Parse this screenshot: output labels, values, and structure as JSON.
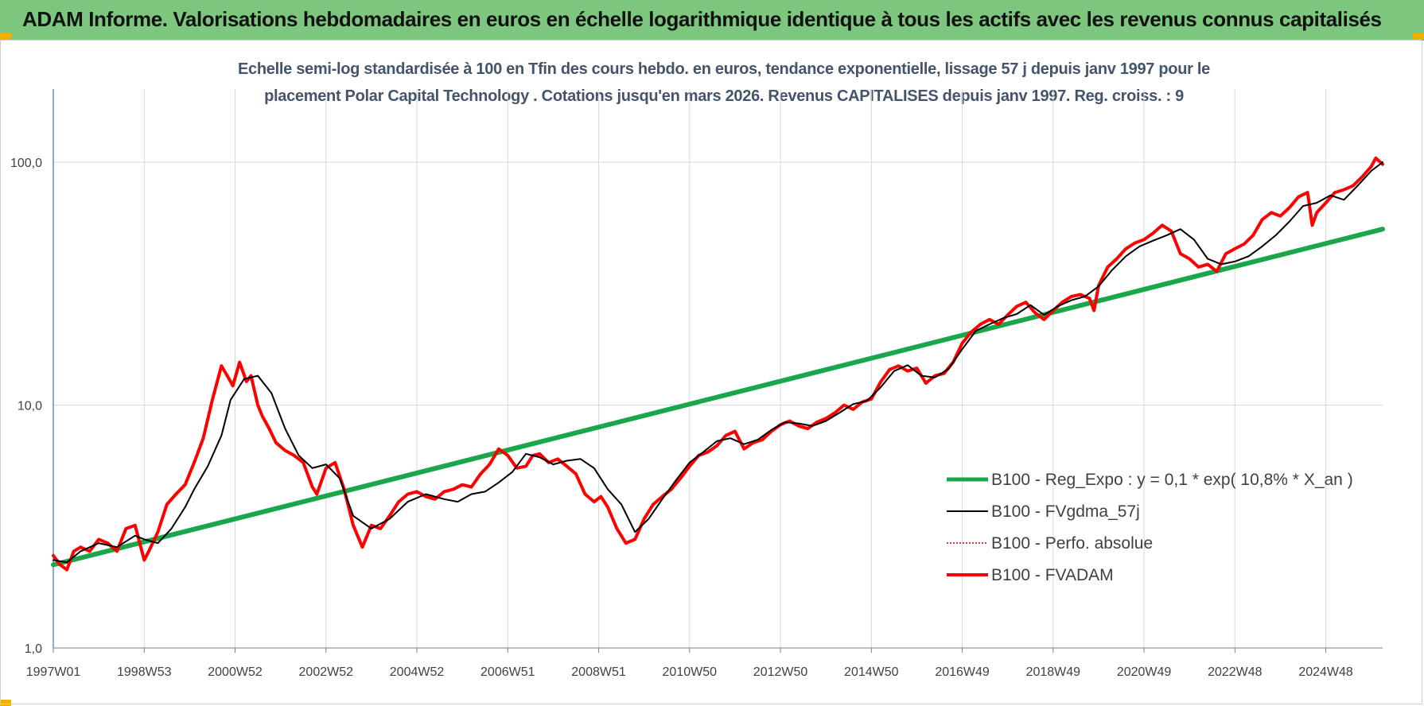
{
  "header": {
    "title": "ADAM Informe. Valorisations hebdomadaires en euros en échelle logarithmique identique à tous les actifs avec les revenus connus capitalisés"
  },
  "colors": {
    "header_bg": "#7dc67d",
    "regression": "#1aa64a",
    "smoothed": "#000000",
    "perfo": "#c00000",
    "fvadam": "#ff0000",
    "title_text": "#44546a"
  },
  "chart_data": {
    "type": "line",
    "title_line1": "Echelle semi-log standardisée à 100 en Tfin des cours hebdo. en euros, tendance exponentielle, lissage 57 j depuis janv 1997 pour le",
    "title_line2": "placement Polar Capital Technology . Cotations jusqu'en mars 2026. Revenus CAPITALISES depuis janv 1997. Reg. croiss. : 9",
    "yscale": "log",
    "ylim": [
      1,
      200
    ],
    "xlim": [
      1997.0,
      2026.25
    ],
    "grid": true,
    "legend_position": "right",
    "y_ticks": [
      {
        "value": 100,
        "label": "100,0"
      },
      {
        "value": 10,
        "label": "10,0"
      },
      {
        "value": 1,
        "label": "1,0"
      }
    ],
    "x_ticks": [
      {
        "value": 1997.0,
        "label": "1997W01"
      },
      {
        "value": 1999.0,
        "label": "1998W53"
      },
      {
        "value": 2001.0,
        "label": "2000W52"
      },
      {
        "value": 2003.0,
        "label": "2002W52"
      },
      {
        "value": 2005.0,
        "label": "2004W52"
      },
      {
        "value": 2007.0,
        "label": "2006W51"
      },
      {
        "value": 2009.0,
        "label": "2008W51"
      },
      {
        "value": 2011.0,
        "label": "2010W50"
      },
      {
        "value": 2013.0,
        "label": "2012W50"
      },
      {
        "value": 2015.0,
        "label": "2014W50"
      },
      {
        "value": 2017.0,
        "label": "2016W49"
      },
      {
        "value": 2019.0,
        "label": "2018W49"
      },
      {
        "value": 2021.0,
        "label": "2020W49"
      },
      {
        "value": 2023.0,
        "label": "2022W48"
      },
      {
        "value": 2025.0,
        "label": "2024W48"
      }
    ],
    "series": [
      {
        "name": "B100 - Reg_Expo : y = 0,1 * exp( 10,8% *  X_an )",
        "style": "regression",
        "x": [
          1997.0,
          2026.25
        ],
        "y": [
          2.2,
          53
        ]
      },
      {
        "name": "B100 - FVgdma_57j",
        "style": "smoothed",
        "x": [
          1997.0,
          1997.3,
          1997.6,
          1998.0,
          1998.4,
          1998.8,
          1999.0,
          1999.3,
          1999.6,
          1999.9,
          2000.1,
          2000.4,
          2000.7,
          2000.9,
          2001.2,
          2001.5,
          2001.8,
          2002.1,
          2002.4,
          2002.7,
          2003.0,
          2003.3,
          2003.6,
          2004.0,
          2004.4,
          2004.8,
          2005.2,
          2005.6,
          2005.9,
          2006.2,
          2006.5,
          2006.8,
          2007.1,
          2007.4,
          2007.7,
          2008.0,
          2008.3,
          2008.6,
          2008.9,
          2009.2,
          2009.5,
          2009.8,
          2010.1,
          2010.4,
          2010.7,
          2011.0,
          2011.3,
          2011.6,
          2011.9,
          2012.2,
          2012.5,
          2012.8,
          2013.1,
          2013.4,
          2013.7,
          2014.0,
          2014.3,
          2014.6,
          2014.9,
          2015.2,
          2015.5,
          2015.8,
          2016.1,
          2016.4,
          2016.7,
          2017.0,
          2017.3,
          2017.6,
          2017.9,
          2018.2,
          2018.5,
          2018.8,
          2019.1,
          2019.4,
          2019.7,
          2020.0,
          2020.3,
          2020.6,
          2020.9,
          2021.2,
          2021.5,
          2021.8,
          2022.1,
          2022.4,
          2022.7,
          2023.0,
          2023.3,
          2023.6,
          2023.9,
          2024.2,
          2024.5,
          2024.8,
          2025.1,
          2025.4,
          2025.7,
          2026.0,
          2026.25
        ],
        "y": [
          2.3,
          2.25,
          2.5,
          2.7,
          2.6,
          2.9,
          2.8,
          2.7,
          3.1,
          3.8,
          4.5,
          5.6,
          7.5,
          10.5,
          12.8,
          13.2,
          11.2,
          8.0,
          6.2,
          5.5,
          5.7,
          5.0,
          3.5,
          3.1,
          3.4,
          4.0,
          4.3,
          4.1,
          4.0,
          4.3,
          4.4,
          4.8,
          5.3,
          6.3,
          6.1,
          5.7,
          5.9,
          6.0,
          5.5,
          4.5,
          3.9,
          3.0,
          3.4,
          4.1,
          4.9,
          5.8,
          6.4,
          7.1,
          7.3,
          6.9,
          7.2,
          7.9,
          8.5,
          8.4,
          8.2,
          8.6,
          9.3,
          10.1,
          10.4,
          11.8,
          13.8,
          14.6,
          13.2,
          13.0,
          14.1,
          17.0,
          20.2,
          21.5,
          22.8,
          23.7,
          25.8,
          23.5,
          25.5,
          27.0,
          28.0,
          30.8,
          36.0,
          41.0,
          45.0,
          47.5,
          50.0,
          53.0,
          48.0,
          40.0,
          38.0,
          39.0,
          41.0,
          45.0,
          50.0,
          57.0,
          66.0,
          68.0,
          73.0,
          70.0,
          80.0,
          92.0,
          100.0
        ]
      },
      {
        "name": "B100 - Perfo. absolue",
        "style": "perfo",
        "x": [],
        "y": []
      },
      {
        "name": "B100 - FVADAM",
        "style": "fvadam",
        "x": [
          1997.0,
          1997.15,
          1997.3,
          1997.45,
          1997.6,
          1997.8,
          1998.0,
          1998.2,
          1998.4,
          1998.6,
          1998.8,
          1999.0,
          1999.1,
          1999.3,
          1999.5,
          1999.7,
          1999.9,
          2000.1,
          2000.3,
          2000.5,
          2000.7,
          2000.85,
          2000.95,
          2001.1,
          2001.25,
          2001.35,
          2001.5,
          2001.6,
          2001.75,
          2001.9,
          2002.1,
          2002.3,
          2002.5,
          2002.7,
          2002.8,
          2003.0,
          2003.2,
          2003.4,
          2003.6,
          2003.8,
          2004.0,
          2004.2,
          2004.4,
          2004.6,
          2004.8,
          2005.0,
          2005.2,
          2005.4,
          2005.6,
          2005.8,
          2006.0,
          2006.2,
          2006.4,
          2006.6,
          2006.8,
          2007.0,
          2007.2,
          2007.4,
          2007.55,
          2007.7,
          2007.9,
          2008.1,
          2008.3,
          2008.5,
          2008.7,
          2008.9,
          2009.05,
          2009.2,
          2009.4,
          2009.6,
          2009.8,
          2010.0,
          2010.2,
          2010.4,
          2010.6,
          2010.8,
          2011.0,
          2011.2,
          2011.4,
          2011.6,
          2011.8,
          2012.0,
          2012.2,
          2012.4,
          2012.6,
          2012.8,
          2013.0,
          2013.2,
          2013.4,
          2013.6,
          2013.8,
          2014.0,
          2014.2,
          2014.4,
          2014.6,
          2014.8,
          2015.0,
          2015.2,
          2015.4,
          2015.6,
          2015.8,
          2016.0,
          2016.2,
          2016.4,
          2016.6,
          2016.8,
          2017.0,
          2017.2,
          2017.4,
          2017.6,
          2017.8,
          2018.0,
          2018.2,
          2018.4,
          2018.6,
          2018.8,
          2019.0,
          2019.2,
          2019.4,
          2019.6,
          2019.8,
          2019.9,
          2020.0,
          2020.2,
          2020.4,
          2020.6,
          2020.8,
          2021.0,
          2021.2,
          2021.4,
          2021.6,
          2021.8,
          2022.0,
          2022.2,
          2022.4,
          2022.6,
          2022.8,
          2023.0,
          2023.2,
          2023.4,
          2023.6,
          2023.8,
          2024.0,
          2024.2,
          2024.4,
          2024.6,
          2024.7,
          2024.8,
          2025.0,
          2025.2,
          2025.4,
          2025.6,
          2025.8,
          2026.0,
          2026.1,
          2026.25
        ],
        "y": [
          2.4,
          2.2,
          2.1,
          2.5,
          2.6,
          2.5,
          2.8,
          2.7,
          2.5,
          3.1,
          3.2,
          2.3,
          2.5,
          3.0,
          3.9,
          4.3,
          4.7,
          5.8,
          7.3,
          10.5,
          14.5,
          13.0,
          12.0,
          15.0,
          12.5,
          13.2,
          10.0,
          9.0,
          8.0,
          7.0,
          6.5,
          6.2,
          5.8,
          4.6,
          4.3,
          5.5,
          5.8,
          4.5,
          3.2,
          2.6,
          3.2,
          3.1,
          3.5,
          4.0,
          4.3,
          4.4,
          4.2,
          4.1,
          4.4,
          4.5,
          4.7,
          4.6,
          5.2,
          5.7,
          6.6,
          6.2,
          5.5,
          5.6,
          6.2,
          6.3,
          5.8,
          6.0,
          5.6,
          5.2,
          4.3,
          4.0,
          4.2,
          3.8,
          3.1,
          2.7,
          2.8,
          3.4,
          3.9,
          4.2,
          4.5,
          5.0,
          5.6,
          6.2,
          6.4,
          6.8,
          7.5,
          7.8,
          6.6,
          7.0,
          7.2,
          7.8,
          8.3,
          8.6,
          8.2,
          8.0,
          8.5,
          8.8,
          9.3,
          10.0,
          9.6,
          10.3,
          10.6,
          12.4,
          14.0,
          14.5,
          13.8,
          14.2,
          12.3,
          13.2,
          13.5,
          15.0,
          18.0,
          20.0,
          21.5,
          22.5,
          21.5,
          23.5,
          25.5,
          26.5,
          24.0,
          22.5,
          24.5,
          26.5,
          28.0,
          28.5,
          27.5,
          24.5,
          31.0,
          37.0,
          40.0,
          44.0,
          46.5,
          48.0,
          51.0,
          55.0,
          52.0,
          42.0,
          40.0,
          37.0,
          38.0,
          35.5,
          42.0,
          44.0,
          46.0,
          50.0,
          58.0,
          62.0,
          60.0,
          65.0,
          72.0,
          75.0,
          55.0,
          62.0,
          68.0,
          75.0,
          77.0,
          80.0,
          87.0,
          96.0,
          104.0,
          98.0
        ]
      }
    ]
  }
}
